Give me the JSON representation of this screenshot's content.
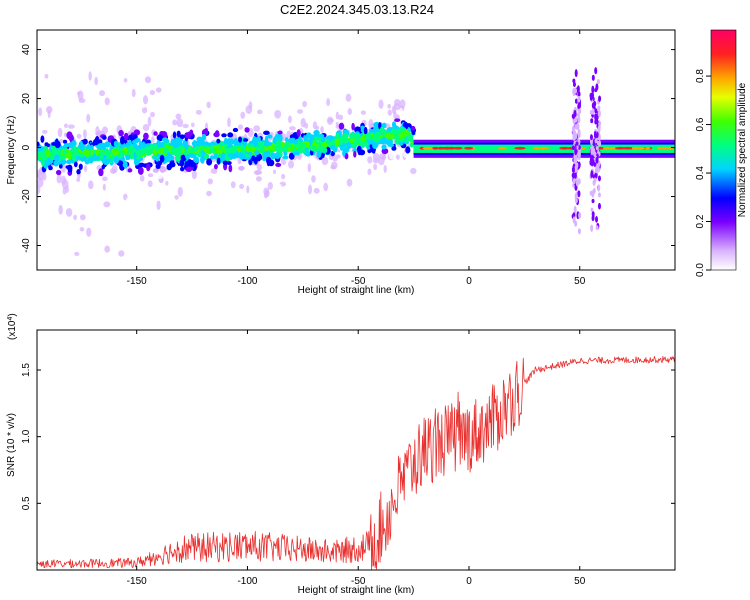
{
  "title": "C2E2.2024.345.03.13.R24",
  "charts": [
    {
      "type": "heatmap",
      "xlabel": "Height of straight line (km)",
      "ylabel": "Frequency (Hz)",
      "xlim": [
        -195,
        93
      ],
      "ylim": [
        -50,
        48
      ],
      "xticks": [
        "-150",
        "-100",
        "-50",
        "0",
        "50"
      ],
      "xtick_values": [
        -150,
        -100,
        -50,
        0,
        50
      ],
      "yticks": [
        "-40",
        "-20",
        "0",
        "20",
        "40"
      ],
      "ytick_values": [
        -40,
        -20,
        0,
        20,
        40
      ],
      "colorbar_label": "Normalized spectral amplitude",
      "colorbar_ticks": [
        "0.0",
        "0.2",
        "0.4",
        "0.6",
        "0.8"
      ],
      "colorbar_values": [
        0,
        0.2,
        0.4,
        0.6,
        0.8
      ],
      "colorbar_range": [
        0,
        0.99
      ],
      "ridge": [
        {
          "x": -195,
          "f": -3
        },
        {
          "x": -160,
          "f": -2
        },
        {
          "x": -120,
          "f": -1
        },
        {
          "x": -80,
          "f": 0
        },
        {
          "x": -50,
          "f": 3
        },
        {
          "x": -30,
          "f": 6
        },
        {
          "x": -25,
          "f": 2
        },
        {
          "x": -20,
          "f": 0
        },
        {
          "x": 93,
          "f": -1
        }
      ]
    },
    {
      "type": "line",
      "xlabel": "Height of straight line (km)",
      "ylabel": "SNR (10 * v/v)",
      "yscale_label": "(x10",
      "yscale_exp": "4",
      "yscale_close": ")",
      "xlim": [
        -195,
        93
      ],
      "ylim": [
        0,
        18000
      ],
      "xticks": [
        "-150",
        "-100",
        "-50",
        "0",
        "50"
      ],
      "xtick_values": [
        -150,
        -100,
        -50,
        0,
        50
      ],
      "yticks": [
        "0.5",
        "1.0",
        "1.5"
      ],
      "ytick_values": [
        5000,
        10000,
        15000
      ],
      "color": "#e8302e",
      "trend": [
        {
          "x": -195,
          "y": 500
        },
        {
          "x": -150,
          "y": 600
        },
        {
          "x": -130,
          "y": 1800
        },
        {
          "x": -100,
          "y": 2000
        },
        {
          "x": -60,
          "y": 1500
        },
        {
          "x": -45,
          "y": 2000
        },
        {
          "x": -38,
          "y": 3500
        },
        {
          "x": -32,
          "y": 6000
        },
        {
          "x": -25,
          "y": 8000
        },
        {
          "x": -20,
          "y": 9000
        },
        {
          "x": -10,
          "y": 9800
        },
        {
          "x": 0,
          "y": 10000
        },
        {
          "x": 10,
          "y": 11000
        },
        {
          "x": 20,
          "y": 13000
        },
        {
          "x": 30,
          "y": 15000
        },
        {
          "x": 50,
          "y": 15700
        },
        {
          "x": 93,
          "y": 15800
        }
      ]
    }
  ]
}
